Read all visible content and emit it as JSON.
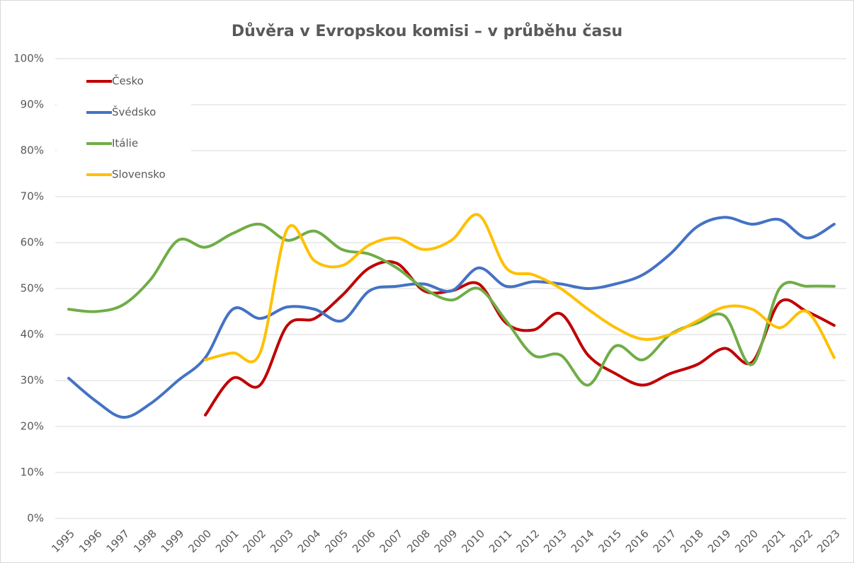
{
  "chart_data": {
    "type": "line",
    "title": "Důvěra v Evropskou komisi – v průběhu času",
    "categories": [
      "1995",
      "1996",
      "1997",
      "1998",
      "1999",
      "2000",
      "2001",
      "2002",
      "2003",
      "2004",
      "2005",
      "2006",
      "2007",
      "2008",
      "2009",
      "2010",
      "2011",
      "2012",
      "2013",
      "2014",
      "2015",
      "2016",
      "2017",
      "2018",
      "2019",
      "2020",
      "2021",
      "2022",
      "2023"
    ],
    "series": [
      {
        "name": "Česko",
        "color": "#c00000",
        "values": [
          null,
          null,
          null,
          null,
          null,
          22.5,
          30.5,
          29,
          42,
          43.5,
          48.5,
          54.5,
          55.5,
          49.5,
          49.5,
          51,
          42.5,
          41,
          44.5,
          35.5,
          31.5,
          29,
          31.5,
          33.5,
          37,
          34,
          47,
          45,
          42
        ]
      },
      {
        "name": "Švédsko",
        "color": "#4472c4",
        "values": [
          30.5,
          25.5,
          22,
          25,
          30,
          35,
          45.5,
          43.5,
          46,
          45.5,
          43,
          49.5,
          50.5,
          51,
          49.5,
          54.5,
          50.5,
          51.5,
          51,
          50,
          51,
          53,
          57.5,
          63.5,
          65.5,
          64,
          65,
          61,
          64
        ]
      },
      {
        "name": "Itálie",
        "color": "#70ad47",
        "values": [
          45.5,
          45,
          46.5,
          52,
          60.5,
          59,
          62,
          64,
          60.5,
          62.5,
          58.5,
          57.5,
          54.5,
          50,
          47.5,
          50,
          43,
          35.5,
          35.5,
          29,
          37.5,
          34.5,
          40,
          42.5,
          44,
          33.5,
          50,
          50.5,
          50.5
        ]
      },
      {
        "name": "Slovensko",
        "color": "#ffc000",
        "values": [
          null,
          null,
          null,
          null,
          null,
          34.5,
          36,
          36,
          63,
          56,
          55,
          59.5,
          61,
          58.5,
          60.5,
          66,
          54.5,
          53,
          50,
          45.5,
          41.5,
          39,
          40,
          43,
          46,
          45.5,
          41.5,
          45,
          35
        ]
      }
    ],
    "ylim": [
      0,
      100
    ],
    "yticks": [
      {
        "value": 0,
        "label": "0%"
      },
      {
        "value": 10,
        "label": "10%"
      },
      {
        "value": 20,
        "label": "20%"
      },
      {
        "value": 30,
        "label": "30%"
      },
      {
        "value": 40,
        "label": "40%"
      },
      {
        "value": 50,
        "label": "50%"
      },
      {
        "value": 60,
        "label": "60%"
      },
      {
        "value": 70,
        "label": "70%"
      },
      {
        "value": 80,
        "label": "80%"
      },
      {
        "value": 90,
        "label": "90%"
      },
      {
        "value": 100,
        "label": "100%"
      }
    ],
    "grid": true,
    "legend": "upper left"
  }
}
